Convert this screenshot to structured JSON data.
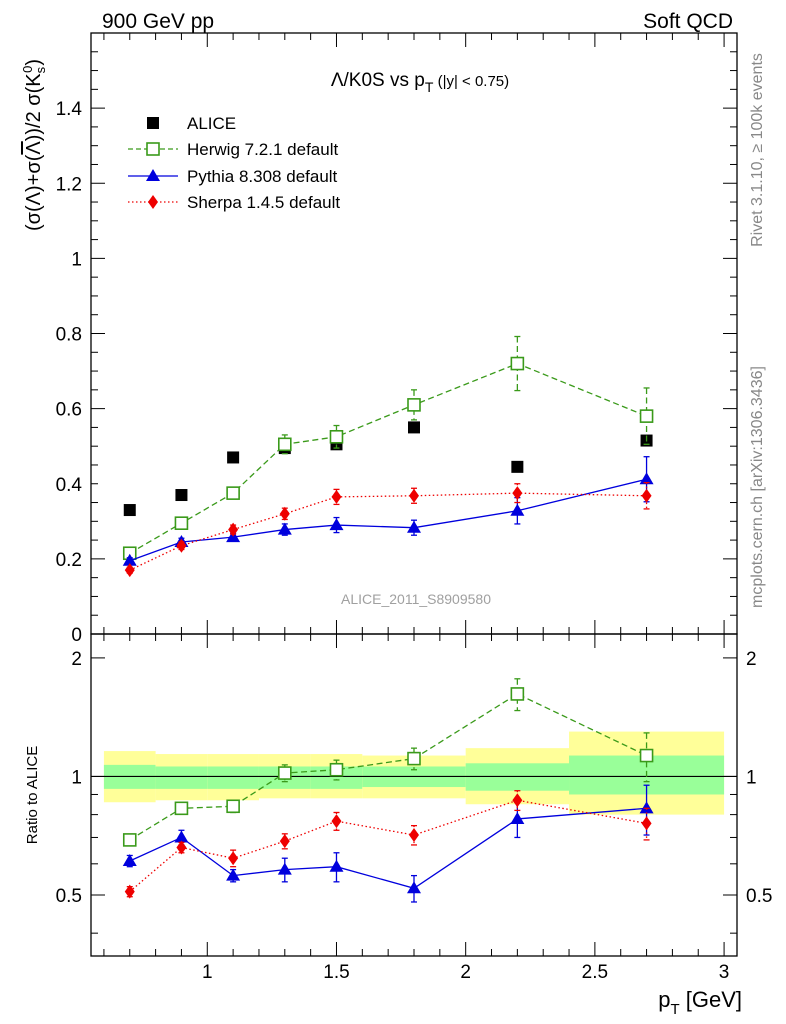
{
  "header": {
    "left": "900 GeV pp",
    "right": "Soft QCD"
  },
  "side_labels": {
    "rivet": "Rivet 3.1.10, ≥ 100k events",
    "mcplots": "mcplots.cern.ch [arXiv:1306.3436]"
  },
  "analysis_id": "ALICE_2011_S8909580",
  "colors": {
    "alice": "#000000",
    "herwig": "#3a9a1a",
    "pythia": "#0000dd",
    "sherpa": "#ee0000",
    "band_outer": "#ffff99",
    "band_inner": "#99ff99"
  },
  "chart_data": [
    {
      "type": "scatter",
      "title": "Λ/K0S vs pT (|y| < 0.75)",
      "ylabel": "(σ(Λ)+σ(Λ̄))/2 σ(K0s)",
      "xlabel": "",
      "xlim": [
        0.55,
        3.05
      ],
      "ylim": [
        0,
        1.6
      ],
      "yticks": [
        0,
        0.2,
        0.4,
        0.6,
        0.8,
        1,
        1.2,
        1.4
      ],
      "ytick_labels": [
        "0",
        "0.2",
        "0.4",
        "0.6",
        "0.8",
        "1",
        "1.2",
        "1.4"
      ],
      "legend_position": "top-left",
      "series": [
        {
          "name": "ALICE",
          "x": [
            0.7,
            0.9,
            1.1,
            1.3,
            1.5,
            1.8,
            2.2,
            2.7
          ],
          "y": [
            0.33,
            0.37,
            0.47,
            0.495,
            0.505,
            0.55,
            0.445,
            0.515
          ],
          "err": [
            0,
            0,
            0,
            0,
            0,
            0,
            0,
            0
          ]
        },
        {
          "name": "Herwig 7.2.1 default",
          "x": [
            0.7,
            0.9,
            1.1,
            1.3,
            1.5,
            1.8,
            2.2,
            2.7
          ],
          "y": [
            0.215,
            0.295,
            0.375,
            0.505,
            0.525,
            0.61,
            0.72,
            0.58
          ],
          "err": [
            0.008,
            0.01,
            0.012,
            0.025,
            0.03,
            0.04,
            0.072,
            0.075
          ]
        },
        {
          "name": "Pythia 8.308 default",
          "x": [
            0.7,
            0.9,
            1.1,
            1.3,
            1.5,
            1.8,
            2.2,
            2.7
          ],
          "y": [
            0.195,
            0.245,
            0.258,
            0.278,
            0.29,
            0.283,
            0.328,
            0.412
          ],
          "err": [
            0.008,
            0.01,
            0.01,
            0.015,
            0.02,
            0.02,
            0.035,
            0.06
          ]
        },
        {
          "name": "Sherpa 1.4.5 default",
          "x": [
            0.7,
            0.9,
            1.1,
            1.3,
            1.5,
            1.8,
            2.2,
            2.7
          ],
          "y": [
            0.17,
            0.235,
            0.278,
            0.32,
            0.365,
            0.368,
            0.375,
            0.368
          ],
          "err": [
            0.008,
            0.01,
            0.012,
            0.015,
            0.02,
            0.02,
            0.025,
            0.035
          ]
        }
      ]
    },
    {
      "type": "scatter",
      "title": "",
      "ylabel": "Ratio to ALICE",
      "xlabel": "pT [GeV]",
      "xlim": [
        0.55,
        3.05
      ],
      "ylim": [
        0.35,
        2.3
      ],
      "yscale": "log",
      "yticks": [
        0.5,
        1,
        2
      ],
      "ytick_labels": [
        "0.5",
        "1",
        "2"
      ],
      "xticks": [
        1,
        1.5,
        2,
        2.5,
        3
      ],
      "xtick_labels": [
        "1",
        "1.5",
        "2",
        "2.5",
        "3"
      ],
      "reference_line": 1,
      "bands": [
        {
          "x0": 0.6,
          "x1": 0.8,
          "inner": [
            0.93,
            1.07
          ],
          "outer": [
            0.86,
            1.16
          ]
        },
        {
          "x0": 0.8,
          "x1": 1.0,
          "inner": [
            0.93,
            1.06
          ],
          "outer": [
            0.87,
            1.14
          ]
        },
        {
          "x0": 1.0,
          "x1": 1.2,
          "inner": [
            0.93,
            1.06
          ],
          "outer": [
            0.87,
            1.14
          ]
        },
        {
          "x0": 1.2,
          "x1": 1.4,
          "inner": [
            0.93,
            1.06
          ],
          "outer": [
            0.88,
            1.14
          ]
        },
        {
          "x0": 1.4,
          "x1": 1.6,
          "inner": [
            0.93,
            1.06
          ],
          "outer": [
            0.88,
            1.14
          ]
        },
        {
          "x0": 1.6,
          "x1": 2.0,
          "inner": [
            0.94,
            1.06
          ],
          "outer": [
            0.88,
            1.13
          ]
        },
        {
          "x0": 2.0,
          "x1": 2.4,
          "inner": [
            0.92,
            1.08
          ],
          "outer": [
            0.85,
            1.18
          ]
        },
        {
          "x0": 2.4,
          "x1": 3.0,
          "inner": [
            0.9,
            1.13
          ],
          "outer": [
            0.8,
            1.3
          ]
        }
      ],
      "series": [
        {
          "name": "Herwig 7.2.1 default",
          "x": [
            0.7,
            0.9,
            1.1,
            1.3,
            1.5,
            1.8,
            2.2,
            2.7
          ],
          "y": [
            0.69,
            0.83,
            0.84,
            1.02,
            1.04,
            1.11,
            1.62,
            1.13
          ],
          "err": [
            0.02,
            0.02,
            0.03,
            0.05,
            0.06,
            0.07,
            0.15,
            0.16
          ]
        },
        {
          "name": "Pythia 8.308 default",
          "x": [
            0.7,
            0.9,
            1.1,
            1.3,
            1.5,
            1.8,
            2.2,
            2.7
          ],
          "y": [
            0.61,
            0.7,
            0.56,
            0.58,
            0.59,
            0.52,
            0.78,
            0.83
          ],
          "err": [
            0.02,
            0.03,
            0.02,
            0.04,
            0.05,
            0.04,
            0.08,
            0.12
          ]
        },
        {
          "name": "Sherpa 1.4.5 default",
          "x": [
            0.7,
            0.9,
            1.1,
            1.3,
            1.5,
            1.8,
            2.2,
            2.7
          ],
          "y": [
            0.51,
            0.66,
            0.62,
            0.685,
            0.77,
            0.71,
            0.87,
            0.76
          ],
          "err": [
            0.015,
            0.02,
            0.03,
            0.03,
            0.04,
            0.04,
            0.05,
            0.07
          ]
        }
      ]
    }
  ]
}
